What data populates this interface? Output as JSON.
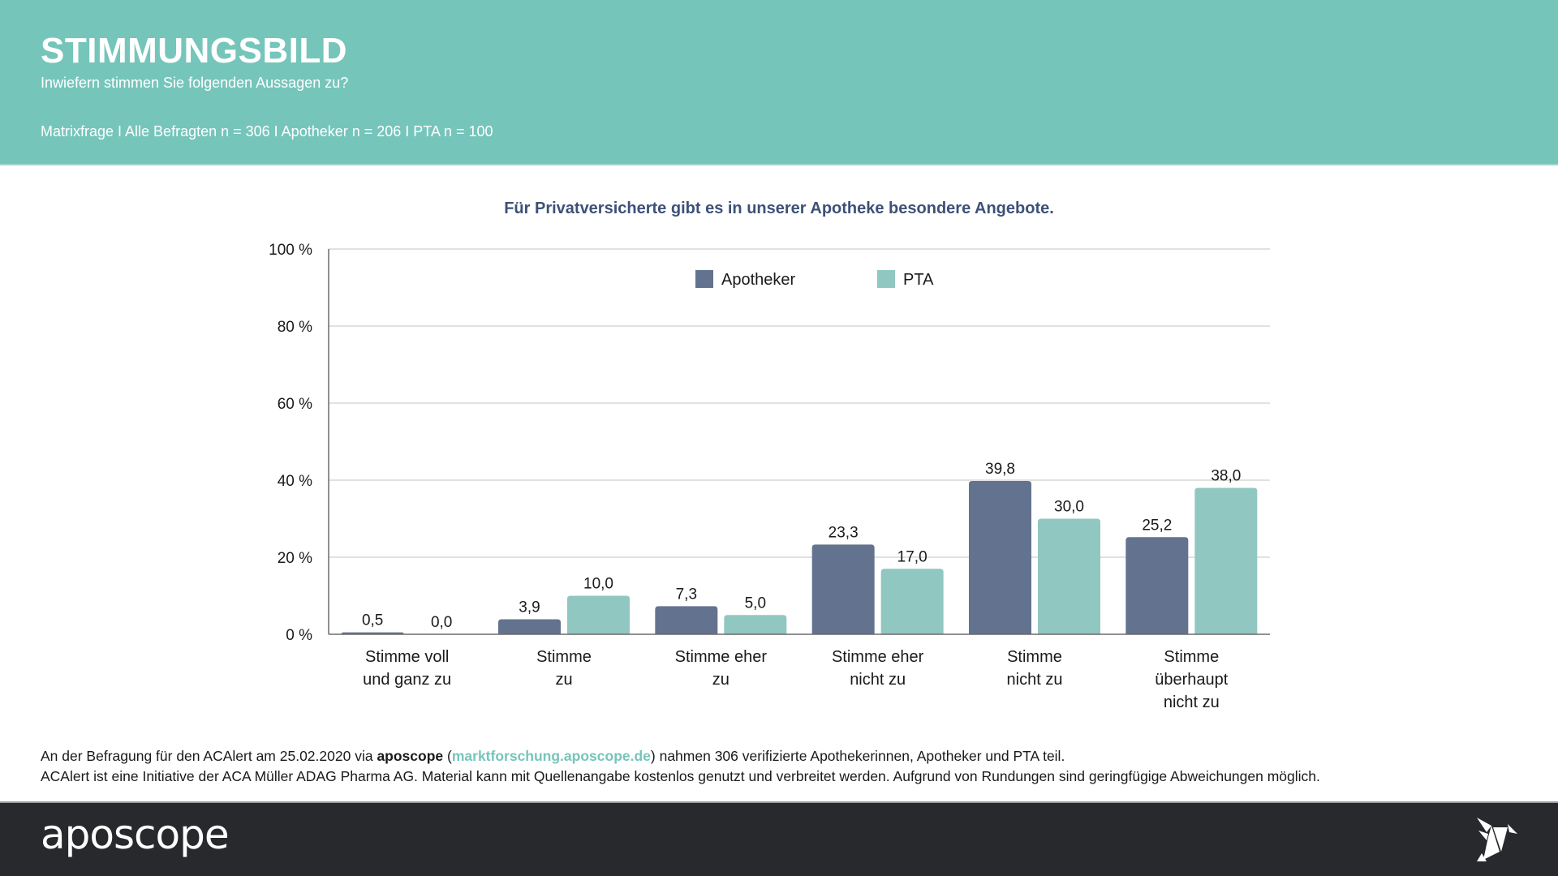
{
  "header": {
    "title": "STIMMUNGSBILD",
    "subtitle": "Inwiefern stimmen Sie folgenden Aussagen zu?",
    "meta": "Matrixfrage I Alle Befragten n = 306 I Apotheker n = 206 I PTA n = 100"
  },
  "colors": {
    "header_bg": "#76c5bb",
    "apotheker": "#63738f",
    "pta": "#91c7c1",
    "title_text": "#3d5178",
    "footer_bg": "#28292d"
  },
  "chart_data": {
    "type": "bar",
    "title": "Für Privatversicherte gibt es in unserer Apotheke besondere Angebote.",
    "xlabel": "",
    "ylabel": "",
    "ylim": [
      0,
      100
    ],
    "yticks": [
      0,
      20,
      40,
      60,
      80,
      100
    ],
    "ytick_labels": [
      "0 %",
      "20 %",
      "40 %",
      "60 %",
      "80 %",
      "100 %"
    ],
    "grid": true,
    "legend_position": "top-center",
    "categories": [
      [
        "Stimme voll",
        "und ganz zu"
      ],
      [
        "Stimme",
        "zu"
      ],
      [
        "Stimme eher",
        "zu"
      ],
      [
        "Stimme eher",
        "nicht zu"
      ],
      [
        "Stimme",
        "nicht zu"
      ],
      [
        "Stimme",
        "überhaupt",
        "nicht zu"
      ]
    ],
    "series": [
      {
        "name": "Apotheker",
        "color": "#63738f",
        "values": [
          0.5,
          3.9,
          7.3,
          23.3,
          39.8,
          25.2
        ],
        "labels": [
          "0,5",
          "3,9",
          "7,3",
          "23,3",
          "39,8",
          "25,2"
        ]
      },
      {
        "name": "PTA",
        "color": "#91c7c1",
        "values": [
          0.0,
          10.0,
          5.0,
          17.0,
          30.0,
          38.0
        ],
        "labels": [
          "0,0",
          "10,0",
          "5,0",
          "17,0",
          "30,0",
          "38,0"
        ]
      }
    ]
  },
  "footnote": {
    "line1_pre": "An der Befragung für den ACAlert am 25.02.2020 via ",
    "brand": "aposcope",
    "paren_open": " (",
    "link": "marktforschung.aposcope.de",
    "line1_post": ") nahmen 306 verifizierte Apothekerinnen, Apotheker und PTA teil.",
    "line2": "ACAlert ist eine Initiative der ACA Müller ADAG Pharma AG. Material kann mit Quellenangabe kostenlos genutzt und verbreitet werden. Aufgrund von Rundungen sind geringfügige Abweichungen möglich."
  },
  "footer": {
    "logo": "aposcope",
    "icon": "origami-bird-icon"
  }
}
